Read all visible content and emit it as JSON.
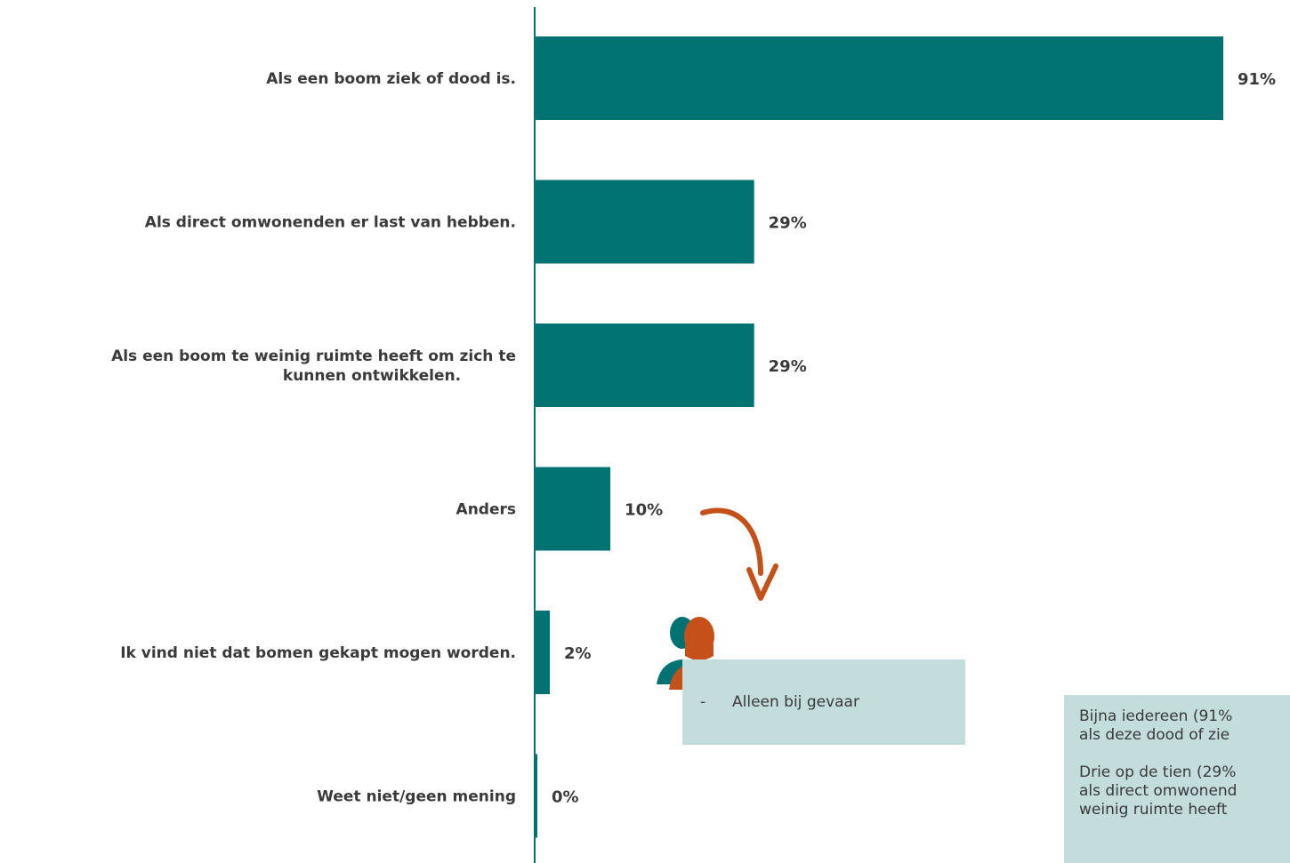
{
  "chart_data": {
    "type": "bar",
    "orientation": "horizontal",
    "categories": [
      [
        "Als een boom ziek of dood is."
      ],
      [
        "Als direct omwonenden er last van hebben."
      ],
      [
        "Als een boom te weinig ruimte heeft om zich te",
        "kunnen ontwikkelen."
      ],
      [
        "Anders"
      ],
      [
        "Ik vind niet dat bomen gekapt mogen worden."
      ],
      [
        "Weet niet/geen mening"
      ]
    ],
    "values": [
      91,
      29,
      29,
      10,
      2,
      0
    ],
    "value_labels": [
      "91%",
      "29%",
      "29%",
      "10%",
      "2%",
      "0%"
    ],
    "unit": "%",
    "bar_color": "#007272",
    "xlim": [
      0,
      91
    ],
    "grid": false,
    "legend": "none"
  },
  "callout": {
    "bullet": "-",
    "text": "Alleen bij gevaar",
    "background": "#c3dcdc",
    "person_colors": [
      "#007272",
      "#c5511a"
    ],
    "arrow_color": "#c5511a"
  },
  "summary": {
    "paragraphs": [
      [
        "Bijna iedereen (91%",
        "als deze dood of zie"
      ],
      [
        "Drie op de tien (29%",
        "als direct omwonend",
        "weinig ruimte heeft"
      ]
    ],
    "background": "#c3dcdc"
  }
}
